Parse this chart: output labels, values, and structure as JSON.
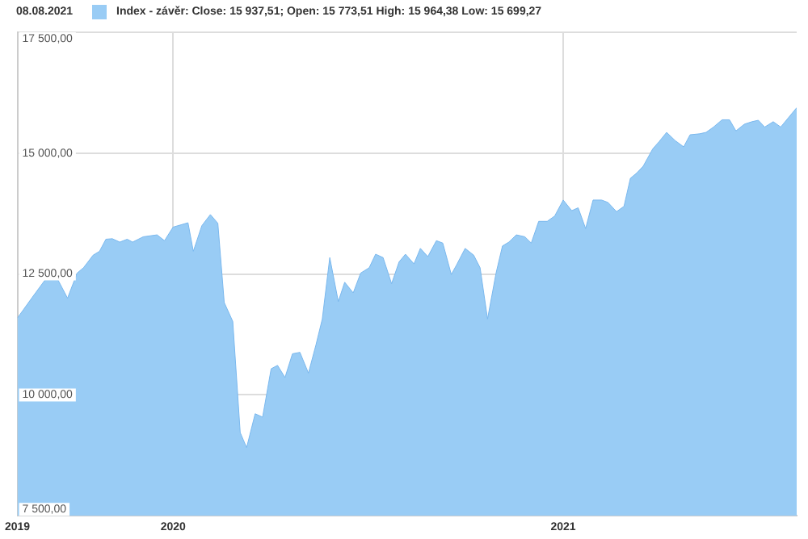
{
  "chart_data": {
    "type": "area",
    "title": "08.08.2021",
    "x": [
      "2019-08-08",
      "2019-08-22",
      "2019-09-03",
      "2019-09-15",
      "2019-09-24",
      "2019-10-03",
      "2019-10-09",
      "2019-10-18",
      "2019-10-24",
      "2019-10-30",
      "2019-11-05",
      "2019-11-12",
      "2019-11-19",
      "2019-11-24",
      "2019-12-04",
      "2019-12-17",
      "2019-12-24",
      "2020-01-01",
      "2020-01-15",
      "2020-01-20",
      "2020-01-28",
      "2020-02-05",
      "2020-02-12",
      "2020-02-18",
      "2020-02-26",
      "2020-03-04",
      "2020-03-10",
      "2020-03-18",
      "2020-03-25",
      "2020-04-02",
      "2020-04-08",
      "2020-04-15",
      "2020-04-22",
      "2020-04-29",
      "2020-05-07",
      "2020-05-14",
      "2020-05-20",
      "2020-05-27",
      "2020-06-04",
      "2020-06-10",
      "2020-06-18",
      "2020-06-25",
      "2020-07-03",
      "2020-07-09",
      "2020-07-16",
      "2020-07-24",
      "2020-07-31",
      "2020-08-06",
      "2020-08-14",
      "2020-08-20",
      "2020-08-27",
      "2020-09-04",
      "2020-09-10",
      "2020-09-18",
      "2020-09-23",
      "2020-10-01",
      "2020-10-09",
      "2020-10-15",
      "2020-10-22",
      "2020-10-30",
      "2020-11-05",
      "2020-11-11",
      "2020-11-18",
      "2020-11-26",
      "2020-12-02",
      "2020-12-09",
      "2020-12-17",
      "2020-12-24",
      "2021-01-01",
      "2021-01-09",
      "2021-01-15",
      "2021-01-22",
      "2021-01-29",
      "2021-02-06",
      "2021-02-12",
      "2021-02-20",
      "2021-02-27",
      "2021-03-05",
      "2021-03-11",
      "2021-03-17",
      "2021-03-26",
      "2021-04-01",
      "2021-04-08",
      "2021-04-16",
      "2021-04-24",
      "2021-04-30",
      "2021-05-09",
      "2021-05-15",
      "2021-05-22",
      "2021-05-30",
      "2021-06-06",
      "2021-06-12",
      "2021-06-20",
      "2021-06-27",
      "2021-07-03",
      "2021-07-09",
      "2021-07-17",
      "2021-07-24",
      "2021-08-08"
    ],
    "series": [
      {
        "name": "Index - závěr: Close: 15 937,51; Open: 15 773,51 High: 15 964,38 Low: 15 699,27",
        "color": "#99ccf5",
        "values": [
          11590,
          12020,
          12380,
          12380,
          12000,
          12520,
          12630,
          12890,
          12970,
          13220,
          13230,
          13160,
          13220,
          13160,
          13270,
          13310,
          13190,
          13470,
          13560,
          12970,
          13500,
          13730,
          13550,
          11910,
          11520,
          9220,
          8910,
          9610,
          9540,
          10540,
          10610,
          10360,
          10850,
          10880,
          10450,
          11030,
          11570,
          12840,
          11930,
          12330,
          12110,
          12520,
          12630,
          12910,
          12840,
          12300,
          12750,
          12910,
          12710,
          13030,
          12860,
          13190,
          13140,
          12490,
          12690,
          13030,
          12890,
          12630,
          11570,
          12520,
          13080,
          13160,
          13310,
          13270,
          13140,
          13590,
          13590,
          13700,
          14030,
          13810,
          13870,
          13440,
          14030,
          14030,
          13980,
          13790,
          13900,
          14480,
          14590,
          14730,
          15090,
          15240,
          15430,
          15260,
          15130,
          15380,
          15400,
          15430,
          15540,
          15690,
          15690,
          15460,
          15600,
          15650,
          15680,
          15540,
          15650,
          15540,
          15940
        ]
      }
    ],
    "xlim": [
      "2019-08-08",
      "2021-08-08"
    ],
    "xticks": [
      {
        "value": "2019-08-08",
        "label": "2019"
      },
      {
        "value": "2020-01-01",
        "label": "2020"
      },
      {
        "value": "2021-01-01",
        "label": "2021"
      }
    ],
    "ylim": [
      7500,
      17500
    ],
    "yticks": [
      {
        "value": 7500,
        "label": "7 500,00"
      },
      {
        "value": 10000,
        "label": "10 000,00"
      },
      {
        "value": 12500,
        "label": "12 500,00"
      },
      {
        "value": 15000,
        "label": "15 000,00"
      },
      {
        "value": 17500,
        "label": "17 500,00"
      }
    ],
    "grid": true,
    "legend": "top left",
    "marker": "none"
  }
}
